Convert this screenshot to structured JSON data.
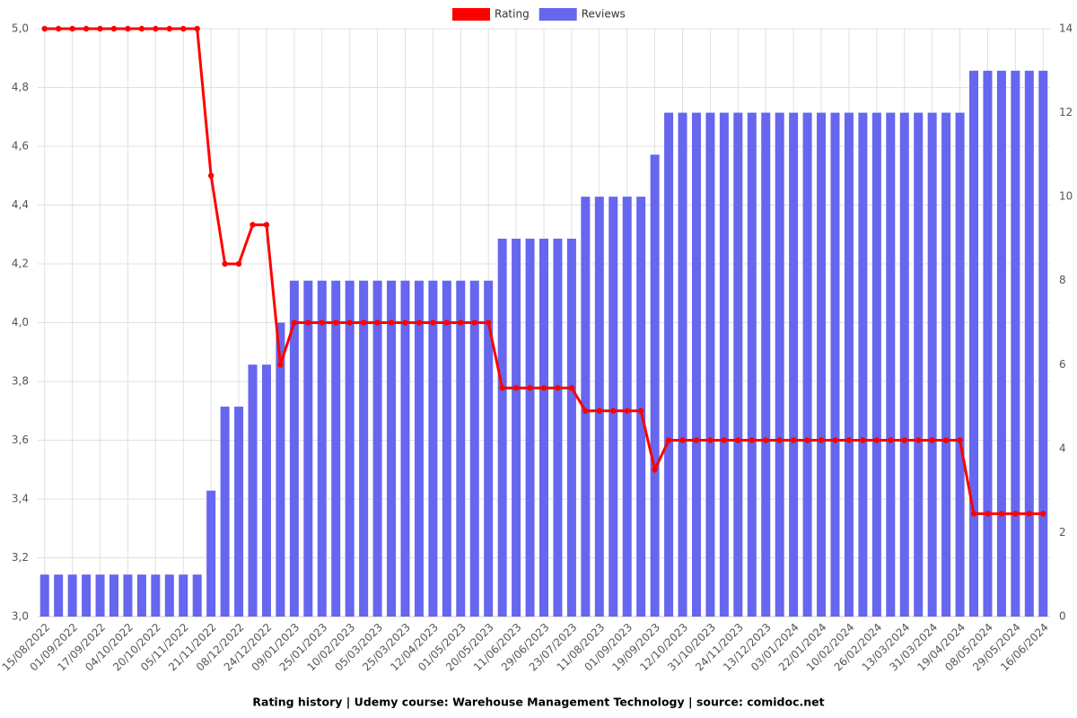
{
  "chart_data": {
    "type": "bar",
    "title": "Rating history | Udemy course: Warehouse Management Technology | source: comidoc.net",
    "categories": [
      "15/08/2022",
      null,
      "01/09/2022",
      null,
      "17/09/2022",
      null,
      "04/10/2022",
      null,
      "20/10/2022",
      null,
      "05/11/2022",
      null,
      "21/11/2022",
      null,
      "08/12/2022",
      null,
      "24/12/2022",
      null,
      "09/01/2023",
      null,
      "25/01/2023",
      null,
      "10/02/2023",
      null,
      "05/03/2023",
      null,
      "25/03/2023",
      null,
      "12/04/2023",
      null,
      "01/05/2023",
      null,
      "20/05/2023",
      null,
      "11/06/2023",
      null,
      "29/06/2023",
      null,
      "23/07/2023",
      null,
      "11/08/2023",
      null,
      "01/09/2023",
      null,
      "19/09/2023",
      null,
      "12/10/2023",
      null,
      "31/10/2023",
      null,
      "24/11/2023",
      null,
      "13/12/2023",
      null,
      "03/01/2024",
      null,
      "22/01/2024",
      null,
      "10/02/2024",
      null,
      "26/02/2024",
      null,
      "13/03/2024",
      null,
      "31/03/2024",
      null,
      "19/04/2024",
      null,
      "08/05/2024",
      null,
      "29/05/2024",
      null,
      "16/06/2024"
    ],
    "series": [
      {
        "name": "Rating",
        "type": "line",
        "axis": "y",
        "color": "#ff0000",
        "values": [
          5,
          5,
          5,
          5,
          5,
          5,
          5,
          5,
          5,
          5,
          5,
          5,
          4.5,
          4.2,
          4.2,
          4.333,
          4.333,
          3.857,
          4,
          4,
          4,
          4,
          4,
          4,
          4,
          4,
          4,
          4,
          4,
          4,
          4,
          4,
          4,
          3.778,
          3.778,
          3.778,
          3.778,
          3.778,
          3.778,
          3.7,
          3.7,
          3.7,
          3.7,
          3.7,
          3.5,
          3.6,
          3.6,
          3.6,
          3.6,
          3.6,
          3.6,
          3.6,
          3.6,
          3.6,
          3.6,
          3.6,
          3.6,
          3.6,
          3.6,
          3.6,
          3.6,
          3.6,
          3.6,
          3.6,
          3.6,
          3.6,
          3.6,
          3.35,
          3.35,
          3.35,
          3.35,
          3.35,
          3.35
        ]
      },
      {
        "name": "Reviews",
        "type": "bar",
        "axis": "y2",
        "color": "#6666ee",
        "values": [
          1,
          1,
          1,
          1,
          1,
          1,
          1,
          1,
          1,
          1,
          1,
          1,
          3,
          5,
          5,
          6,
          6,
          7,
          8,
          8,
          8,
          8,
          8,
          8,
          8,
          8,
          8,
          8,
          8,
          8,
          8,
          8,
          8,
          9,
          9,
          9,
          9,
          9,
          9,
          10,
          10,
          10,
          10,
          10,
          11,
          12,
          12,
          12,
          12,
          12,
          12,
          12,
          12,
          12,
          12,
          12,
          12,
          12,
          12,
          12,
          12,
          12,
          12,
          12,
          12,
          12,
          12,
          13,
          13,
          13,
          13,
          13,
          13
        ]
      }
    ],
    "ylim": [
      3,
      5
    ],
    "yticks": [
      {
        "value": 3,
        "label": "3,0"
      },
      {
        "value": 3.2,
        "label": "3,2"
      },
      {
        "value": 3.4,
        "label": "3,4"
      },
      {
        "value": 3.6,
        "label": "3,6"
      },
      {
        "value": 3.8,
        "label": "3,8"
      },
      {
        "value": 4,
        "label": "4,0"
      },
      {
        "value": 4.2,
        "label": "4,2"
      },
      {
        "value": 4.4,
        "label": "4,4"
      },
      {
        "value": 4.6,
        "label": "4,6"
      },
      {
        "value": 4.8,
        "label": "4,8"
      },
      {
        "value": 5,
        "label": "5,0"
      }
    ],
    "y2lim": [
      0,
      14
    ],
    "y2ticks": [
      0,
      2,
      4,
      6,
      8,
      10,
      12,
      14
    ],
    "grid": true,
    "legend": "top"
  }
}
